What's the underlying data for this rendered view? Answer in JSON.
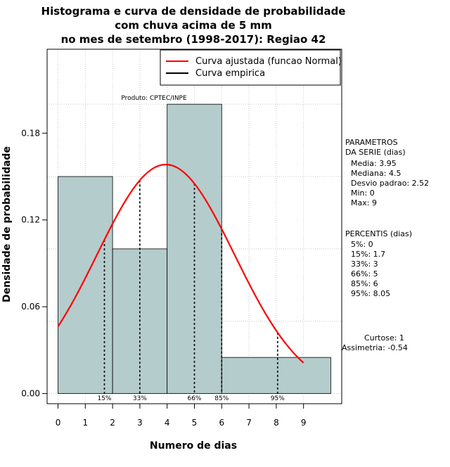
{
  "chart_data": {
    "type": "bar",
    "title_lines": [
      "Histograma e curva de densidade de probabilidade",
      "com chuva acima de 5 mm",
      "no mes de setembro (1998-2017): Regiao 42"
    ],
    "xlabel": "Numero de dias",
    "ylabel": "Densidade de probabilidade",
    "xlim": [
      -0.4,
      10.4
    ],
    "ylim": [
      -0.007,
      0.238
    ],
    "x_ticks": [
      "0",
      "1",
      "2",
      "3",
      "4",
      "5",
      "6",
      "7",
      "8",
      "9"
    ],
    "x_tick_values": [
      0,
      1,
      2,
      3,
      4,
      5,
      6,
      7,
      8,
      9
    ],
    "y_ticks": [
      "0.00",
      "0.06",
      "0.12",
      "0.18"
    ],
    "y_tick_values": [
      0.0,
      0.06,
      0.12,
      0.18
    ],
    "grid": true,
    "bar_color": "#b5cccc",
    "curve_color": "#ff0000",
    "bins": [
      {
        "from": 0,
        "to": 2,
        "density": 0.15
      },
      {
        "from": 2,
        "to": 4,
        "density": 0.1
      },
      {
        "from": 4,
        "to": 6,
        "density": 0.2
      },
      {
        "from": 6,
        "to": 10,
        "density": 0.025
      }
    ],
    "normal_fit": {
      "mean": 3.95,
      "sd": 2.52,
      "x_start": 0,
      "x_end": 9
    },
    "percentile_marks": [
      {
        "label": "15%",
        "x": 1.7
      },
      {
        "label": "33%",
        "x": 3
      },
      {
        "label": "66%",
        "x": 5
      },
      {
        "label": "85%",
        "x": 6
      },
      {
        "label": "95%",
        "x": 8.05
      }
    ],
    "legend": [
      {
        "label": "Curva ajustada (funcao Normal)",
        "color": "#ff0000"
      },
      {
        "label": "Curva empirica",
        "color": "#000000"
      }
    ],
    "legend_position": "top-right",
    "credit": "Produto: CPTEC/INPE"
  },
  "parametros": {
    "heading_line1": "PARAMETROS",
    "heading_line2": "DA SERIE (dias)",
    "items": [
      "Media: 3.95",
      "Mediana: 4.5",
      "Desvio padrao: 2.52",
      "Min: 0",
      "Max: 9"
    ]
  },
  "percentis": {
    "heading": "PERCENTIS (dias)",
    "items": [
      "5%: 0",
      "15%: 1.7",
      "33%: 3",
      "66%: 5",
      "85%: 6",
      "95%: 8.05"
    ]
  },
  "shape": {
    "curtose": "Curtose: 1",
    "assimetria": "Assimetria: -0.54"
  }
}
